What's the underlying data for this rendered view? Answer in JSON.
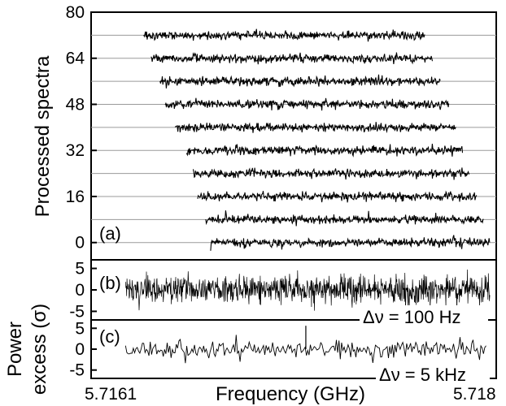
{
  "chart_data": [
    {
      "panel_label": "(a)",
      "type": "line",
      "ylabel": "Processed spectra",
      "ylim": [
        -6,
        80
      ],
      "yticks": [
        0,
        16,
        32,
        48,
        64,
        80
      ],
      "ytick_labels": [
        "0",
        "16",
        "32",
        "48",
        "64",
        "80"
      ],
      "grid": true,
      "traces": [
        {
          "offset": 0,
          "x_start_frac": 0.295,
          "x_end_frac": 0.985
        },
        {
          "offset": 8,
          "x_start_frac": 0.283,
          "x_end_frac": 0.97
        },
        {
          "offset": 16,
          "x_start_frac": 0.263,
          "x_end_frac": 0.952
        },
        {
          "offset": 24,
          "x_start_frac": 0.252,
          "x_end_frac": 0.935
        },
        {
          "offset": 32,
          "x_start_frac": 0.235,
          "x_end_frac": 0.918
        },
        {
          "offset": 40,
          "x_start_frac": 0.207,
          "x_end_frac": 0.9
        },
        {
          "offset": 48,
          "x_start_frac": 0.183,
          "x_end_frac": 0.883
        },
        {
          "offset": 56,
          "x_start_frac": 0.17,
          "x_end_frac": 0.862
        },
        {
          "offset": 64,
          "x_start_frac": 0.148,
          "x_end_frac": 0.843
        },
        {
          "offset": 72,
          "x_start_frac": 0.13,
          "x_end_frac": 0.825
        }
      ]
    },
    {
      "panel_label": "(b)",
      "type": "line",
      "ylim": [
        -7,
        7
      ],
      "yticks": [
        -5,
        0,
        5
      ],
      "ytick_labels": [
        "-5",
        "0",
        "5"
      ],
      "annotation": "Δν = 100 Hz",
      "noise_sigma": 1.6
    },
    {
      "panel_label": "(c)",
      "type": "line",
      "ylim": [
        -7,
        7
      ],
      "yticks": [
        -5,
        0,
        5
      ],
      "ytick_labels": [
        "-5",
        "0",
        "5"
      ],
      "annotation": "Δν = 5 kHz",
      "noise_sigma": 1.0,
      "spike": {
        "x_frac": 0.53,
        "value": 5.6
      }
    }
  ],
  "shared": {
    "ylabel_power": [
      "Power",
      "excess (σ)"
    ],
    "xlabel": "Frequency (GHz)",
    "xlim": [
      5.7161,
      5.718
    ],
    "xtick_labels": [
      "5.7161",
      "5.718"
    ]
  }
}
